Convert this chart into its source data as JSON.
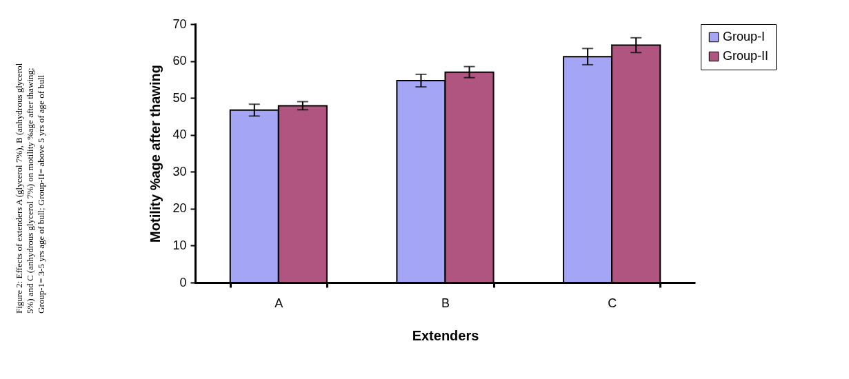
{
  "chart_data": {
    "type": "bar",
    "xlabel": "Extenders",
    "ylabel": "Motility %age after thawing",
    "categories": [
      "A",
      "B",
      "C"
    ],
    "series": [
      {
        "name": "Group-I",
        "color": "#a5a5f5",
        "values": [
          46.7,
          54.7,
          61.2
        ],
        "errors": [
          1.6,
          1.7,
          2.2
        ]
      },
      {
        "name": "Group-II",
        "color": "#b0557f",
        "values": [
          47.9,
          57.0,
          64.3
        ],
        "errors": [
          1.1,
          1.5,
          2.0
        ]
      }
    ],
    "ylim": [
      0,
      70
    ],
    "yticks": [
      0,
      10,
      20,
      30,
      40,
      50,
      60,
      70
    ],
    "grid": false,
    "legend": "right",
    "annotations": [
      "Figure 2: Effects of extenders A (glycerol 7%), B (anhydrous glycerol",
      "5%) and C (anhydrous glycerol 7%) on motility %age after thawing;",
      "Group-1= 3-5 yrs age of bull; Group-II= above 5 yrs of age of bull"
    ]
  }
}
